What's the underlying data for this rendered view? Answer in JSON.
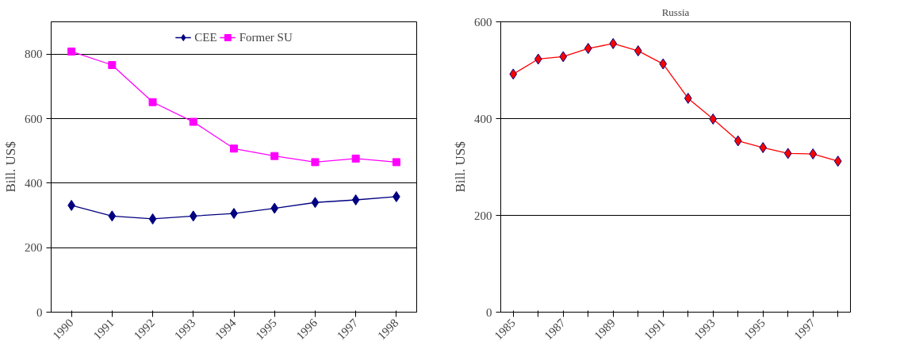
{
  "chart_data": [
    {
      "type": "line",
      "categories": [
        "1990",
        "1991",
        "1992",
        "1993",
        "1994",
        "1995",
        "1996",
        "1997",
        "1998"
      ],
      "ylabel": "Bill. US$",
      "ylim": [
        0,
        900
      ],
      "yticks": [
        0,
        200,
        400,
        600,
        800
      ],
      "grid": "y",
      "legend": "top",
      "series": [
        {
          "name": "CEE",
          "color": "#000080",
          "marker": "diamond",
          "values": [
            331,
            298,
            289,
            298,
            306,
            322,
            340,
            348,
            358
          ]
        },
        {
          "name": "Former SU",
          "color": "#ff00ff",
          "marker": "square",
          "values": [
            808,
            766,
            651,
            590,
            507,
            484,
            465,
            476,
            465
          ]
        }
      ]
    },
    {
      "type": "line",
      "title": "Russia",
      "categories": [
        "1985",
        null,
        "1987",
        null,
        "1989",
        null,
        "1991",
        null,
        "1993",
        null,
        "1995",
        null,
        "1997",
        null
      ],
      "ylabel": "Bill. US$",
      "ylim": [
        0,
        600
      ],
      "yticks": [
        0,
        200,
        400,
        600
      ],
      "grid": "y",
      "series": [
        {
          "color": "#ff0000",
          "marker": "diamond",
          "values": [
            492,
            523,
            528,
            545,
            555,
            540,
            513,
            442,
            399,
            354,
            340,
            328,
            327,
            312
          ]
        }
      ]
    }
  ]
}
